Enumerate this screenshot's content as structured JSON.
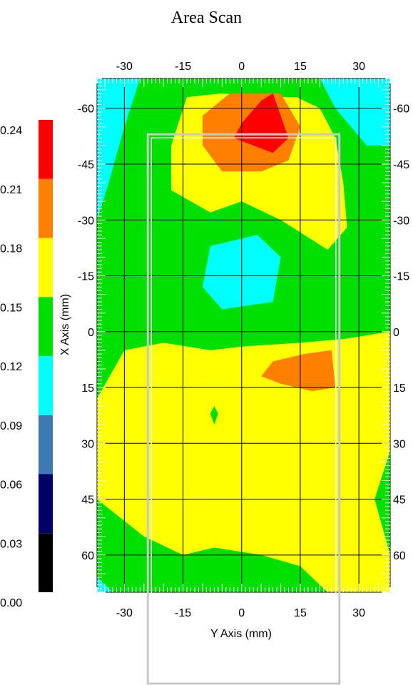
{
  "chart_data": {
    "type": "heatmap",
    "title": "Area Scan",
    "xlabel": "Y Axis (mm)",
    "ylabel": "X Axis (mm)",
    "x_ticks": [
      "-30",
      "-15",
      "0",
      "15",
      "30"
    ],
    "y_ticks": [
      "-60",
      "-45",
      "-30",
      "-15",
      "0",
      "15",
      "30",
      "45",
      "60"
    ],
    "x_tick_values": [
      -30,
      -15,
      0,
      15,
      30
    ],
    "y_tick_values": [
      -60,
      -45,
      -30,
      -15,
      0,
      15,
      30,
      45,
      60
    ],
    "xlim": [
      -37,
      38
    ],
    "ylim": [
      -68,
      70
    ],
    "grid": true,
    "legend_position": "left",
    "colorbar": {
      "tick_labels": [
        "0.24",
        "0.21",
        "0.18",
        "0.15",
        "0.12",
        "0.09",
        "0.06",
        "0.03",
        "0.00"
      ],
      "bins": [
        {
          "min": 0.0,
          "max": 0.03,
          "color": "#000000"
        },
        {
          "min": 0.03,
          "max": 0.06,
          "color": "#000066"
        },
        {
          "min": 0.06,
          "max": 0.09,
          "color": "#3d7ab0"
        },
        {
          "min": 0.09,
          "max": 0.12,
          "color": "#00ffff"
        },
        {
          "min": 0.12,
          "max": 0.15,
          "color": "#00e000"
        },
        {
          "min": 0.15,
          "max": 0.18,
          "color": "#ffff00"
        },
        {
          "min": 0.18,
          "max": 0.21,
          "color": "#ff8000"
        },
        {
          "min": 0.21,
          "max": 0.24,
          "color": "#ff0000"
        }
      ]
    },
    "regions": [
      {
        "level": "0.15-0.18",
        "color": "#ffff00",
        "points": [
          [
            -37,
            18
          ],
          [
            -30,
            5
          ],
          [
            -20,
            3
          ],
          [
            -8,
            5
          ],
          [
            0,
            4
          ],
          [
            15,
            3
          ],
          [
            26,
            2
          ],
          [
            38,
            0
          ],
          [
            38,
            32
          ],
          [
            34,
            45
          ],
          [
            38,
            60
          ],
          [
            38,
            70
          ],
          [
            22,
            70
          ],
          [
            15,
            63
          ],
          [
            5,
            60
          ],
          [
            -7,
            58
          ],
          [
            -15,
            60
          ],
          [
            -25,
            55
          ],
          [
            -37,
            45
          ]
        ]
      },
      {
        "level": "0.15-0.18",
        "color": "#ffff00",
        "points": [
          [
            -14,
            -63
          ],
          [
            -5,
            -64
          ],
          [
            5,
            -63
          ],
          [
            14,
            -63
          ],
          [
            20,
            -60
          ],
          [
            24,
            -52
          ],
          [
            26,
            -40
          ],
          [
            27,
            -28
          ],
          [
            22,
            -22
          ],
          [
            10,
            -30
          ],
          [
            0,
            -35
          ],
          [
            -8,
            -32
          ],
          [
            -18,
            -38
          ],
          [
            -18,
            -50
          ]
        ]
      },
      {
        "level": "0.12-0.15",
        "color": "#00e000",
        "points": [
          [
            -5,
            -30
          ],
          [
            8,
            -30
          ],
          [
            14,
            -22
          ],
          [
            14,
            -2
          ],
          [
            6,
            -8
          ],
          [
            -5,
            -6
          ],
          [
            -15,
            -10
          ],
          [
            -15,
            -22
          ]
        ]
      },
      {
        "level": "0.18-0.21",
        "color": "#ff8000",
        "points": [
          [
            -10,
            -58
          ],
          [
            -3,
            -64
          ],
          [
            10,
            -64
          ],
          [
            15,
            -55
          ],
          [
            12,
            -46
          ],
          [
            5,
            -43
          ],
          [
            -5,
            -43
          ],
          [
            -10,
            -50
          ]
        ]
      },
      {
        "level": "0.21-0.24",
        "color": "#ff0000",
        "points": [
          [
            0,
            -56
          ],
          [
            5,
            -62
          ],
          [
            8,
            -64
          ],
          [
            12,
            -52
          ],
          [
            8,
            -48
          ],
          [
            -2,
            -52
          ]
        ]
      },
      {
        "level": "0.09-0.12",
        "color": "#00ffff",
        "points": [
          [
            -8,
            -23
          ],
          [
            4,
            -26
          ],
          [
            10,
            -20
          ],
          [
            8,
            -8
          ],
          [
            -5,
            -6
          ],
          [
            -10,
            -12
          ]
        ]
      },
      {
        "level": "0.09-0.12",
        "color": "#00ffff",
        "points": [
          [
            -37,
            -68
          ],
          [
            -26,
            -68
          ],
          [
            -30,
            -55
          ],
          [
            -34,
            -40
          ],
          [
            -37,
            -30
          ]
        ]
      },
      {
        "level": "0.09-0.12",
        "color": "#00ffff",
        "points": [
          [
            20,
            -68
          ],
          [
            38,
            -68
          ],
          [
            38,
            -50
          ],
          [
            32,
            -50
          ],
          [
            24,
            -60
          ]
        ]
      },
      {
        "level": "0.18-0.21",
        "color": "#ff8000",
        "points": [
          [
            5,
            12
          ],
          [
            8,
            8
          ],
          [
            16,
            6
          ],
          [
            23,
            5
          ],
          [
            24,
            15
          ],
          [
            18,
            16
          ],
          [
            10,
            14
          ]
        ]
      },
      {
        "level": "0.15-0.18",
        "color": "#ffff00",
        "points": [
          [
            14,
            -40
          ],
          [
            18,
            -42
          ],
          [
            22,
            -35
          ],
          [
            22,
            -30
          ],
          [
            18,
            -30
          ]
        ]
      },
      {
        "level": "0.12-0.15",
        "color": "#00e000",
        "points": [
          [
            -8,
            22
          ],
          [
            -7,
            20
          ],
          [
            -6,
            22
          ],
          [
            -7,
            25
          ]
        ]
      }
    ],
    "overlay_rect": {
      "x_min": -24,
      "x_max": 25,
      "y_min": -53,
      "y_max": 140
    }
  }
}
